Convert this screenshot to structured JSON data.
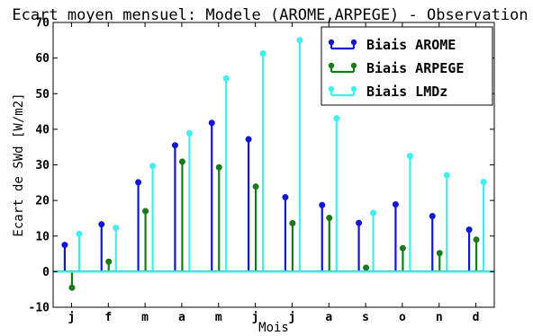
{
  "chart_data": {
    "type": "stem",
    "title": "Ecart moyen mensuel: Modele (AROME,ARPEGE) - Observation",
    "xlabel": "Mois",
    "ylabel": "Ecart de SWd [W/m2]",
    "categories": [
      "j",
      "f",
      "m",
      "a",
      "m",
      "j",
      "j",
      "a",
      "s",
      "o",
      "n",
      "d"
    ],
    "ylim": [
      -10,
      70
    ],
    "yticks": [
      -10,
      0,
      10,
      20,
      30,
      40,
      50,
      60,
      70
    ],
    "grid": false,
    "legend_position": "top-right",
    "series": [
      {
        "name": "Biais AROME",
        "color": "#1515d6",
        "values": [
          7.5,
          13.3,
          25.1,
          35.5,
          41.8,
          37.2,
          20.9,
          18.7,
          13.7,
          18.9,
          15.6,
          11.8
        ]
      },
      {
        "name": "Biais ARPEGE",
        "color": "#1a7a1a",
        "values": [
          -4.5,
          2.8,
          17.0,
          30.9,
          29.3,
          23.9,
          13.6,
          15.1,
          1.1,
          6.6,
          5.2,
          9.0
        ]
      },
      {
        "name": "Biais LMDz",
        "color": "#3ff0f0",
        "values": [
          10.6,
          12.3,
          29.7,
          38.9,
          54.3,
          61.3,
          65.0,
          43.1,
          16.5,
          32.5,
          27.1,
          25.2
        ]
      }
    ]
  }
}
